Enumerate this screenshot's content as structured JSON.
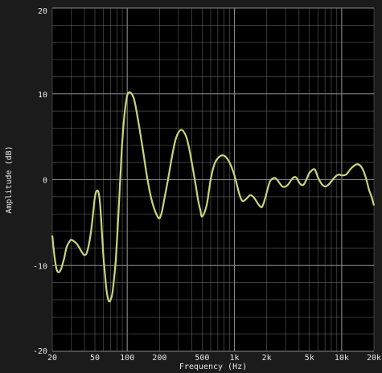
{
  "colors": {
    "background": "#1b1b1b",
    "plot_background": "#000000",
    "grid": "#8f8f8f",
    "curve": "#c8d67a",
    "text": "#e6e6e6"
  },
  "chart_data": {
    "type": "line",
    "title": "",
    "xlabel": "Frequency (Hz)",
    "ylabel": "Amplitude (dB)",
    "x_scale": "log",
    "xlim": [
      20,
      20000
    ],
    "ylim": [
      -20,
      20
    ],
    "grid": true,
    "x_tick_values": [
      20,
      50,
      100,
      200,
      500,
      1000,
      2000,
      5000,
      10000,
      20000
    ],
    "x_tick_labels": [
      "20",
      "50",
      "100",
      "200",
      "500",
      "1k",
      "2k",
      "5k",
      "10k",
      "20k"
    ],
    "y_tick_values": [
      20,
      10,
      0,
      -10,
      -20
    ],
    "y_tick_labels": [
      "20",
      "10",
      "0",
      "-10",
      "-20"
    ],
    "series": [
      {
        "color": "#c8d67a",
        "x": [
          20,
          21,
          22,
          23,
          24,
          25,
          26,
          27,
          28,
          29,
          30,
          32,
          34,
          36,
          38,
          40,
          42,
          44,
          46,
          48,
          50,
          52,
          54,
          56,
          58,
          60,
          62,
          64,
          66,
          68,
          70,
          72,
          74,
          78,
          82,
          86,
          90,
          95,
          100,
          105,
          110,
          115,
          120,
          130,
          140,
          150,
          160,
          170,
          180,
          190,
          200,
          210,
          220,
          240,
          260,
          280,
          300,
          320,
          340,
          360,
          380,
          400,
          420,
          440,
          460,
          480,
          500,
          550,
          600,
          650,
          700,
          750,
          800,
          850,
          900,
          950,
          1000,
          1050,
          1100,
          1150,
          1200,
          1300,
          1400,
          1500,
          1600,
          1700,
          1800,
          1900,
          2000,
          2100,
          2200,
          2400,
          2600,
          2800,
          3000,
          3200,
          3400,
          3600,
          3800,
          4000,
          4200,
          4400,
          4600,
          4800,
          5000,
          5200,
          5400,
          5600,
          5800,
          6000,
          6500,
          7000,
          7500,
          8000,
          8500,
          9000,
          9500,
          10000,
          11000,
          12000,
          13000,
          14000,
          15000,
          16000,
          17000,
          18000,
          19000,
          20000
        ],
        "y": [
          -6.5,
          -9.0,
          -10.5,
          -10.8,
          -10.5,
          -9.8,
          -9.0,
          -8.0,
          -7.5,
          -7.2,
          -7.0,
          -7.2,
          -7.5,
          -8.0,
          -8.5,
          -8.8,
          -8.5,
          -7.5,
          -6.0,
          -4.0,
          -2.0,
          -1.3,
          -1.5,
          -3.0,
          -6.0,
          -9.0,
          -11.0,
          -12.8,
          -13.8,
          -14.2,
          -14.0,
          -13.5,
          -12.5,
          -9.5,
          -5.0,
          0.0,
          4.5,
          8.0,
          9.8,
          10.2,
          10.0,
          9.5,
          8.5,
          6.0,
          3.5,
          1.0,
          -1.0,
          -2.5,
          -3.5,
          -4.2,
          -4.5,
          -3.8,
          -2.5,
          0.0,
          2.5,
          4.5,
          5.5,
          5.8,
          5.5,
          4.8,
          3.5,
          2.0,
          0.5,
          -1.0,
          -2.5,
          -3.5,
          -4.3,
          -3.0,
          0.0,
          1.8,
          2.5,
          2.8,
          2.8,
          2.5,
          2.0,
          1.3,
          0.5,
          -0.5,
          -1.5,
          -2.2,
          -2.5,
          -2.2,
          -1.8,
          -2.0,
          -2.5,
          -3.0,
          -3.2,
          -2.5,
          -1.5,
          -0.5,
          0.0,
          0.2,
          -0.3,
          -0.8,
          -0.8,
          -0.5,
          0.0,
          0.3,
          0.2,
          -0.3,
          -0.6,
          -0.6,
          -0.2,
          0.3,
          0.8,
          1.0,
          1.2,
          1.2,
          0.8,
          0.3,
          -0.5,
          -0.8,
          -0.6,
          -0.2,
          0.2,
          0.5,
          0.6,
          0.5,
          0.6,
          1.2,
          1.6,
          1.8,
          1.6,
          1.0,
          0.0,
          -1.2,
          -2.0,
          -3.0
        ]
      }
    ]
  }
}
